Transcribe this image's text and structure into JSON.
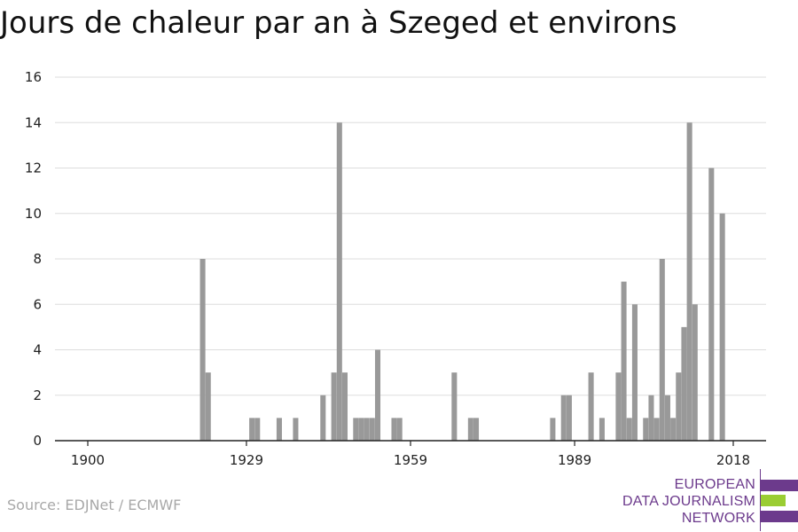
{
  "header": {
    "title": "Jours de chaleur par an à Szeged et environs"
  },
  "footer": {
    "source": "Source: EDJNet / ECMWF",
    "logo_lines": [
      "EUROPEAN",
      "DATA JOURNALISM",
      "NETWORK"
    ],
    "logo_colors": [
      "#6c3a8c",
      "#9acd32",
      "#6c3a8c"
    ]
  },
  "chart_data": {
    "type": "bar",
    "title": "Jours de chaleur par an à Szeged et environs",
    "xlabel": "",
    "ylabel": "",
    "xlim": [
      1894,
      2024
    ],
    "ylim": [
      0,
      16
    ],
    "x_ticks": [
      1900,
      1929,
      1959,
      1989,
      2018
    ],
    "y_ticks": [
      0,
      2,
      4,
      6,
      8,
      10,
      12,
      14,
      16
    ],
    "grid": true,
    "bar_color": "#999999",
    "x": [
      1921,
      1922,
      1930,
      1931,
      1935,
      1938,
      1943,
      1945,
      1946,
      1947,
      1949,
      1950,
      1951,
      1952,
      1953,
      1956,
      1957,
      1967,
      1970,
      1971,
      1985,
      1987,
      1988,
      1992,
      1994,
      1997,
      1998,
      1999,
      2000,
      2002,
      2003,
      2004,
      2005,
      2006,
      2007,
      2008,
      2009,
      2010,
      2011,
      2012,
      2014,
      2016
    ],
    "values": [
      8,
      3,
      1,
      1,
      1,
      1,
      2,
      3,
      14,
      3,
      1,
      1,
      1,
      1,
      4,
      1,
      1,
      3,
      1,
      1,
      1,
      2,
      2,
      3,
      1,
      3,
      7,
      1,
      6,
      1,
      2,
      1,
      8,
      2,
      1,
      3,
      5,
      14,
      6,
      0,
      12,
      10
    ]
  }
}
